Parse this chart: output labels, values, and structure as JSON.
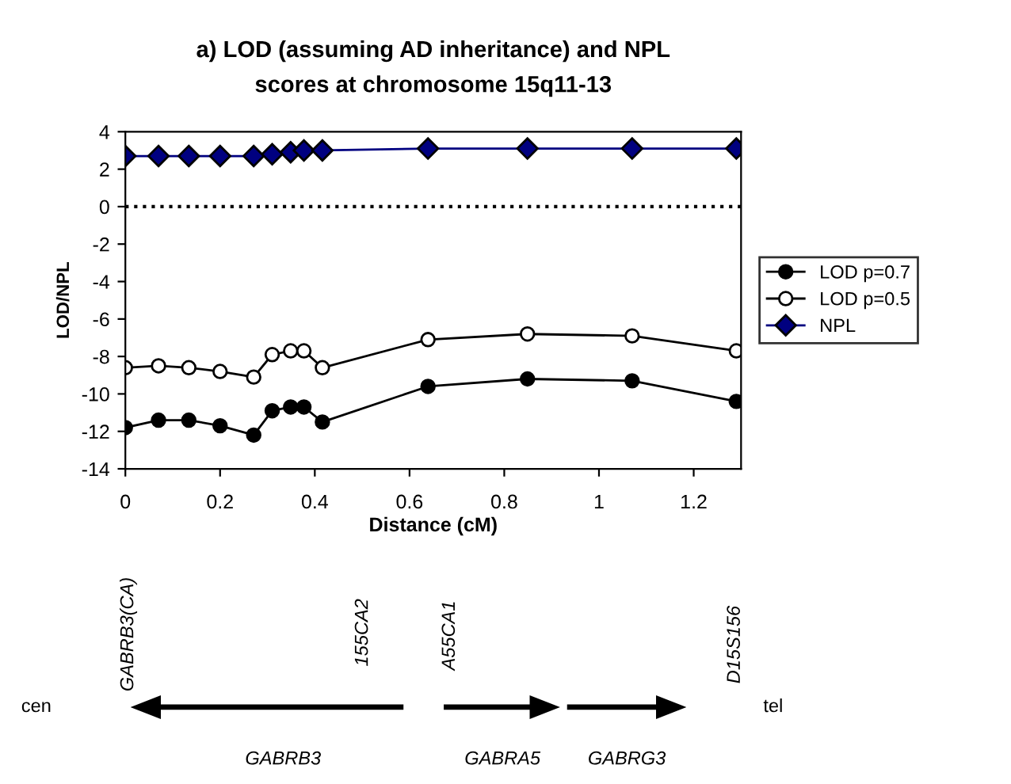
{
  "chart_data": {
    "type": "line",
    "title": "a) LOD (assuming AD inheritance) and NPL\nscores at chromosome 15q11-13",
    "xlabel": "Distance (cM)",
    "ylabel": "LOD/NPL",
    "x": [
      0,
      0.07,
      0.134,
      0.2,
      0.271,
      0.31,
      0.349,
      0.377,
      0.416,
      0.639,
      0.849,
      1.07,
      1.29
    ],
    "series": [
      {
        "name": "LOD p=0.7",
        "color": "#000000",
        "marker": "circle",
        "values": [
          -11.8,
          -11.4,
          -11.4,
          -11.7,
          -12.2,
          -10.9,
          -10.7,
          -10.7,
          -11.5,
          -9.6,
          -9.2,
          -9.3,
          -10.4
        ]
      },
      {
        "name": "LOD p=0.5",
        "color": "#ffffff",
        "marker": "circle",
        "values": [
          -8.6,
          -8.5,
          -8.6,
          -8.8,
          -9.1,
          -7.9,
          -7.7,
          -7.7,
          -8.6,
          -7.1,
          -6.8,
          -6.9,
          -7.7
        ]
      },
      {
        "name": "NPL",
        "color": "#000080",
        "marker": "diamond",
        "values": [
          2.7,
          2.7,
          2.7,
          2.7,
          2.7,
          2.8,
          2.9,
          3.0,
          3.0,
          3.1,
          3.1,
          3.1,
          3.1
        ]
      }
    ],
    "xlim": [
      0,
      1.3
    ],
    "xticks": [
      0,
      0.2,
      0.4,
      0.6,
      0.8,
      1,
      1.2
    ],
    "ylim": [
      -14,
      4
    ],
    "yticks": [
      -14,
      -12,
      -10,
      -8,
      -6,
      -4,
      -2,
      0,
      2,
      4
    ],
    "ref_lines": [
      {
        "axis": "y",
        "value": 0,
        "color": "#000000",
        "line_style": "dotted"
      }
    ],
    "grid": false,
    "legend": "right",
    "line_style": "solid",
    "annotations": [
      "GABRB3(CA)",
      "155CA2",
      "A55CA1",
      "D15S156",
      "cen",
      "tel",
      "GABRB3",
      "GABRA5",
      "GABRG3"
    ]
  }
}
